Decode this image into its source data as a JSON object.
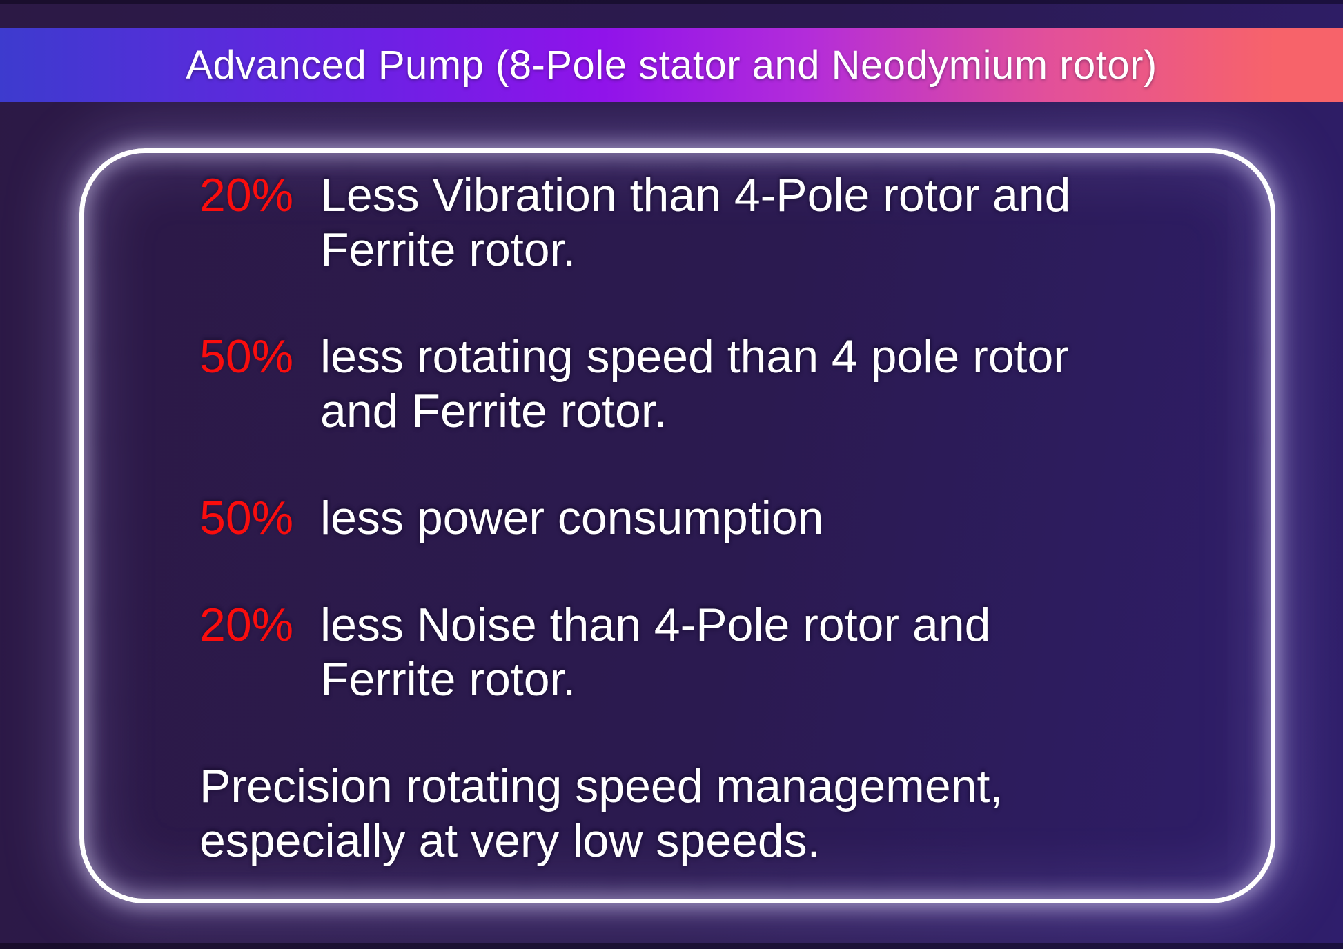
{
  "header": {
    "title": "Advanced Pump (8-Pole stator and Neodymium rotor)"
  },
  "features": {
    "items": [
      {
        "percent": "20%",
        "lines": [
          "Less Vibration than 4-Pole rotor and",
          "Ferrite rotor."
        ]
      },
      {
        "percent": "50%",
        "lines": [
          "less rotating speed than 4 pole rotor",
          "and Ferrite rotor."
        ]
      },
      {
        "percent": "50%",
        "lines": [
          "less power consumption"
        ]
      },
      {
        "percent": "20%",
        "lines": [
          "less Noise than 4-Pole rotor and",
          "Ferrite rotor."
        ]
      },
      {
        "percent": "",
        "lines": [
          "Precision rotating speed management,",
          "especially at very low speeds."
        ]
      }
    ]
  },
  "colors": {
    "bg-left": "#2c1945",
    "bg-right": "#2f1e6c",
    "bar-blue": "#3d3bce",
    "bar-violet": "#9013ea",
    "bar-magenta": "#b32cda",
    "bar-pink": "#e2509a",
    "bar-red": "#f7636a",
    "accent-red": "#fa0d0d",
    "text-white": "#ffffff",
    "border-white": "#ffffff"
  }
}
